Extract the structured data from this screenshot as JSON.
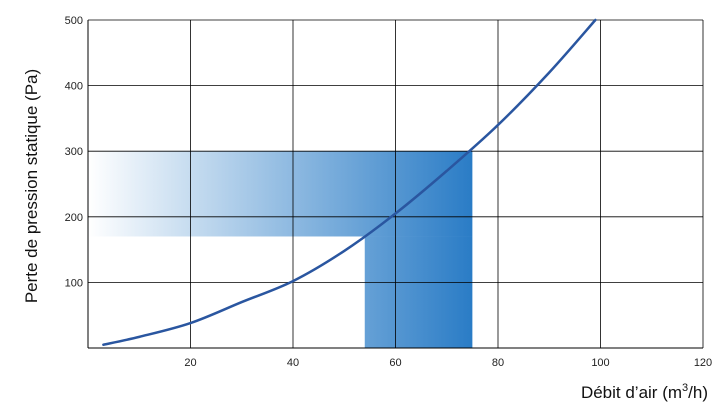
{
  "chart_data": {
    "type": "line",
    "title": "",
    "xlabel": "Débit d’air (m",
    "xlabel_sup": "3",
    "xlabel_end": "/h)",
    "ylabel": "Perte de pression statique (Pa)",
    "xlim": [
      0,
      120
    ],
    "ylim": [
      0,
      500
    ],
    "x_ticks": [
      20,
      40,
      60,
      80,
      100,
      120
    ],
    "y_ticks": [
      100,
      200,
      300,
      400,
      500
    ],
    "grid": true,
    "series": [
      {
        "x": [
          3,
          10,
          20,
          30,
          40,
          50,
          60,
          70,
          80,
          90,
          99
        ],
        "y": [
          5,
          17,
          38,
          70,
          102,
          148,
          205,
          270,
          340,
          420,
          500
        ]
      }
    ],
    "shaded_regions": [
      {
        "x": [
          0,
          75
        ],
        "y": [
          170,
          300
        ]
      },
      {
        "x": [
          54,
          75
        ],
        "y": [
          0,
          170
        ]
      }
    ],
    "colors": {
      "line": "#2a56a0",
      "fill_dark": "#2a7cc6",
      "fill_light": "#ffffff",
      "grid": "#000000"
    }
  }
}
